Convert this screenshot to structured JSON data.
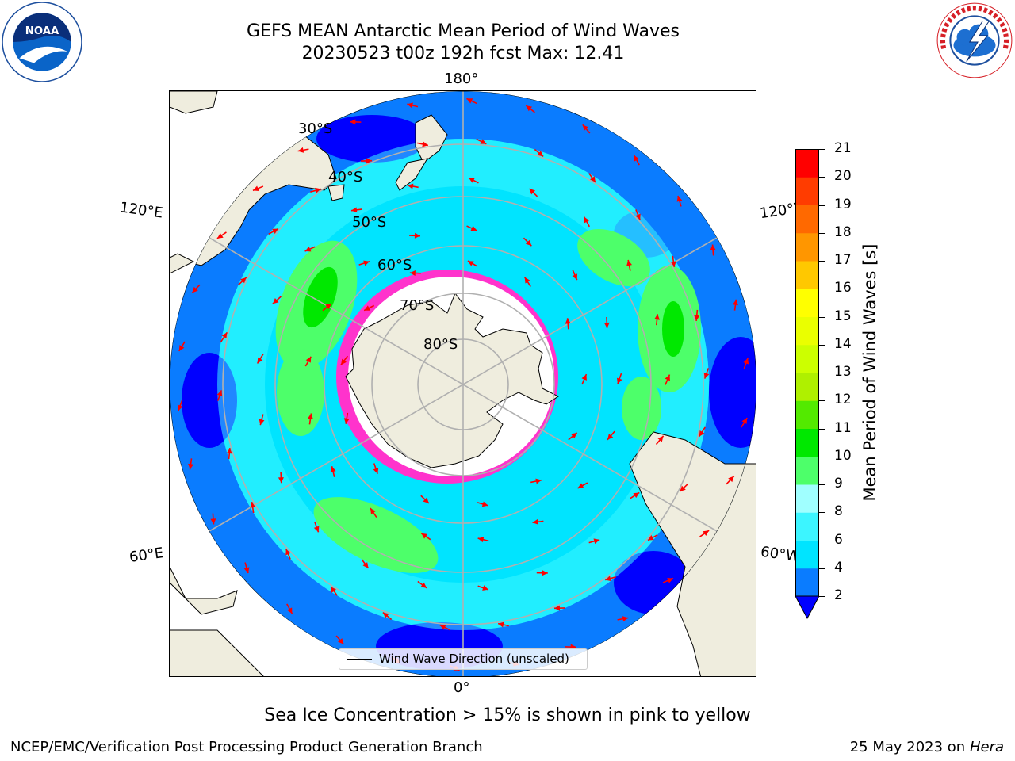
{
  "title": {
    "line1": "GEFS MEAN Antarctic Mean Period of Wind Waves",
    "line2": "20230523 t00z 192h fcst   Max: 12.41"
  },
  "logos": {
    "left": "noaa-logo",
    "right": "national-weather-service-logo"
  },
  "map": {
    "projection": "south-polar-stereographic",
    "longitude_labels": {
      "top": "180°",
      "bottom": "0°",
      "upper_left": "120°E",
      "lower_left": "60°E",
      "upper_right": "120°W",
      "lower_right": "60°W"
    },
    "latitude_labels": [
      "30°S",
      "40°S",
      "50°S",
      "60°S",
      "70°S",
      "80°S"
    ],
    "colors": {
      "land": "#efedde",
      "antarctica_ice_shelf": "#ffffff",
      "sea_ice_edge": "#ff33cc",
      "arrows": "#ff0000",
      "grid": "#b0b0b0"
    }
  },
  "legend": {
    "label": "Wind Wave Direction (unscaled)"
  },
  "colorbar": {
    "label": "Mean Period of Wind Waves [s]",
    "ticks": [
      "2",
      "4",
      "6",
      "8",
      "9",
      "10",
      "11",
      "12",
      "13",
      "14",
      "15",
      "16",
      "17",
      "18",
      "19",
      "20",
      "21"
    ],
    "colors": [
      "#0000ff",
      "#0a7cff",
      "#00e4ff",
      "#3cf5ff",
      "#a0ffff",
      "#4dff6a",
      "#00e800",
      "#53ea00",
      "#aff000",
      "#ccff00",
      "#eaff00",
      "#ffff00",
      "#ffc800",
      "#ff9600",
      "#ff6900",
      "#ff3c00",
      "#ff0000"
    ],
    "under_color": "#0000ff"
  },
  "footer": {
    "ice_note": "Sea Ice Concentration > 15% is shown in pink to yellow",
    "left": "NCEP/EMC/Verification Post Processing Product Generation Branch",
    "right_date": "25 May 2023 on",
    "right_host": "Hera"
  }
}
